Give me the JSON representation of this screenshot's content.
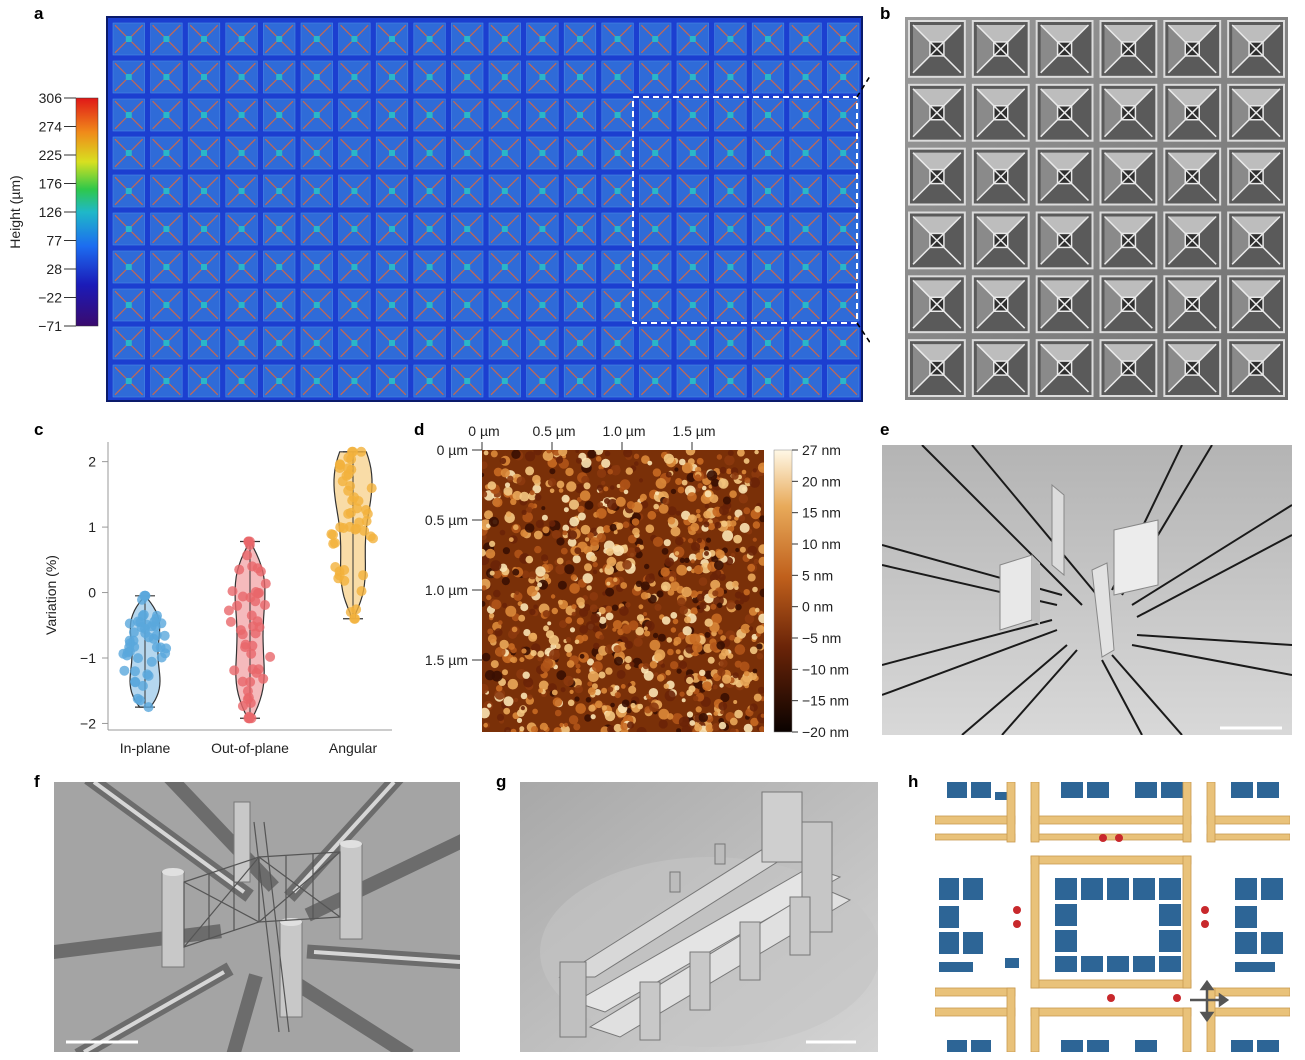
{
  "panels": {
    "a": "a",
    "b": "b",
    "c": "c",
    "d": "d",
    "e": "e",
    "f": "f",
    "g": "g",
    "h": "h"
  },
  "panel_a": {
    "colorbar_label": "Height (µm)",
    "colorbar_ticks": [
      "306",
      "274",
      "225",
      "176",
      "126",
      "77",
      "28",
      "−22",
      "−71"
    ],
    "grid_rows": 10,
    "grid_cols": 20
  },
  "chart_data": [
    {
      "type": "violin",
      "panel": "c",
      "ylabel": "Variation (%)",
      "ylim": [
        -2.1,
        2.3
      ],
      "yticks": [
        "2",
        "1",
        "0",
        "−1",
        "−2"
      ],
      "categories": [
        "In-plane",
        "Out-of-plane",
        "Angular"
      ],
      "series": [
        {
          "category": "In-plane",
          "color": "#5aa7dc",
          "min": -1.75,
          "max": -0.05,
          "median": -0.95
        },
        {
          "category": "Out-of-plane",
          "color": "#e8676a",
          "min": -1.92,
          "max": 0.78,
          "median": -0.6
        },
        {
          "category": "Angular",
          "color": "#f2b13c",
          "min": -0.4,
          "max": 2.15,
          "median": 1.1
        }
      ]
    }
  ],
  "panel_d": {
    "x_ticks": [
      "0 µm",
      "0.5 µm",
      "1.0 µm",
      "1.5 µm"
    ],
    "y_ticks": [
      "0 µm",
      "0.5 µm",
      "1.0 µm",
      "1.5 µm"
    ],
    "colorbar_ticks": [
      "27 nm",
      "20 nm",
      "15 nm",
      "10 nm",
      "5 nm",
      "0 nm",
      "−5 nm",
      "−10 nm",
      "−15 nm",
      "−20 nm"
    ]
  },
  "colors": {
    "afm_high": "#f7e3a0",
    "afm_mid": "#c0601c",
    "afm_low": "#1a0600",
    "metamaterial_beam": "#e9c27a",
    "metamaterial_block": "#2d6596",
    "marker": "#c8282c"
  }
}
